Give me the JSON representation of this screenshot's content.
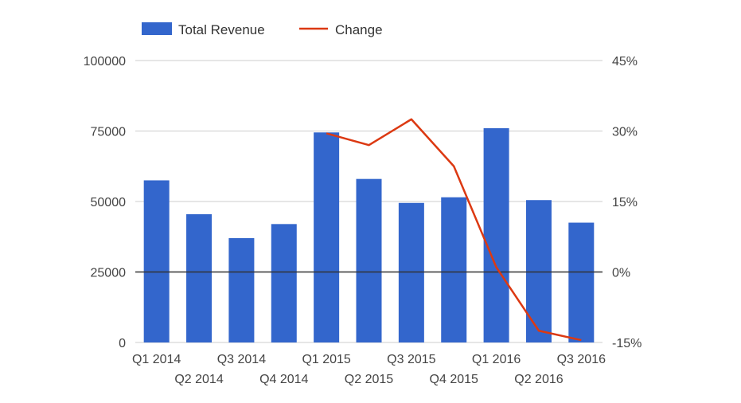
{
  "chart_data": {
    "type": "bar+line",
    "categories": [
      "Q1 2014",
      "Q2 2014",
      "Q3 2014",
      "Q4 2014",
      "Q1 2015",
      "Q2 2015",
      "Q3 2015",
      "Q4 2015",
      "Q1 2016",
      "Q2 2016",
      "Q3 2016"
    ],
    "series": [
      {
        "name": "Total Revenue",
        "type": "bar",
        "axis": "left",
        "color": "#3366cc",
        "values": [
          57500,
          45500,
          37000,
          42000,
          74500,
          58000,
          49500,
          51500,
          76000,
          50500,
          42500
        ]
      },
      {
        "name": "Change",
        "type": "line",
        "axis": "right",
        "color": "#dc3912",
        "values": [
          null,
          null,
          null,
          null,
          29.5,
          27,
          32.5,
          22.5,
          1,
          -12.5,
          -14.5
        ]
      }
    ],
    "y_left": {
      "min": 0,
      "max": 100000,
      "ticks": [
        "0",
        "25000",
        "50000",
        "75000",
        "100000"
      ],
      "tick_values": [
        0,
        25000,
        50000,
        75000,
        100000
      ]
    },
    "y_right": {
      "min": -15,
      "max": 45,
      "ticks": [
        "-15%",
        "0%",
        "15%",
        "30%",
        "45%"
      ],
      "tick_values": [
        -15,
        0,
        15,
        30,
        45
      ]
    },
    "baseline_value": 25000,
    "grid": true,
    "legend": {
      "position": "top-left",
      "entries": [
        "Total Revenue",
        "Change"
      ]
    },
    "title": "",
    "xlabel": "",
    "ylabel": ""
  }
}
